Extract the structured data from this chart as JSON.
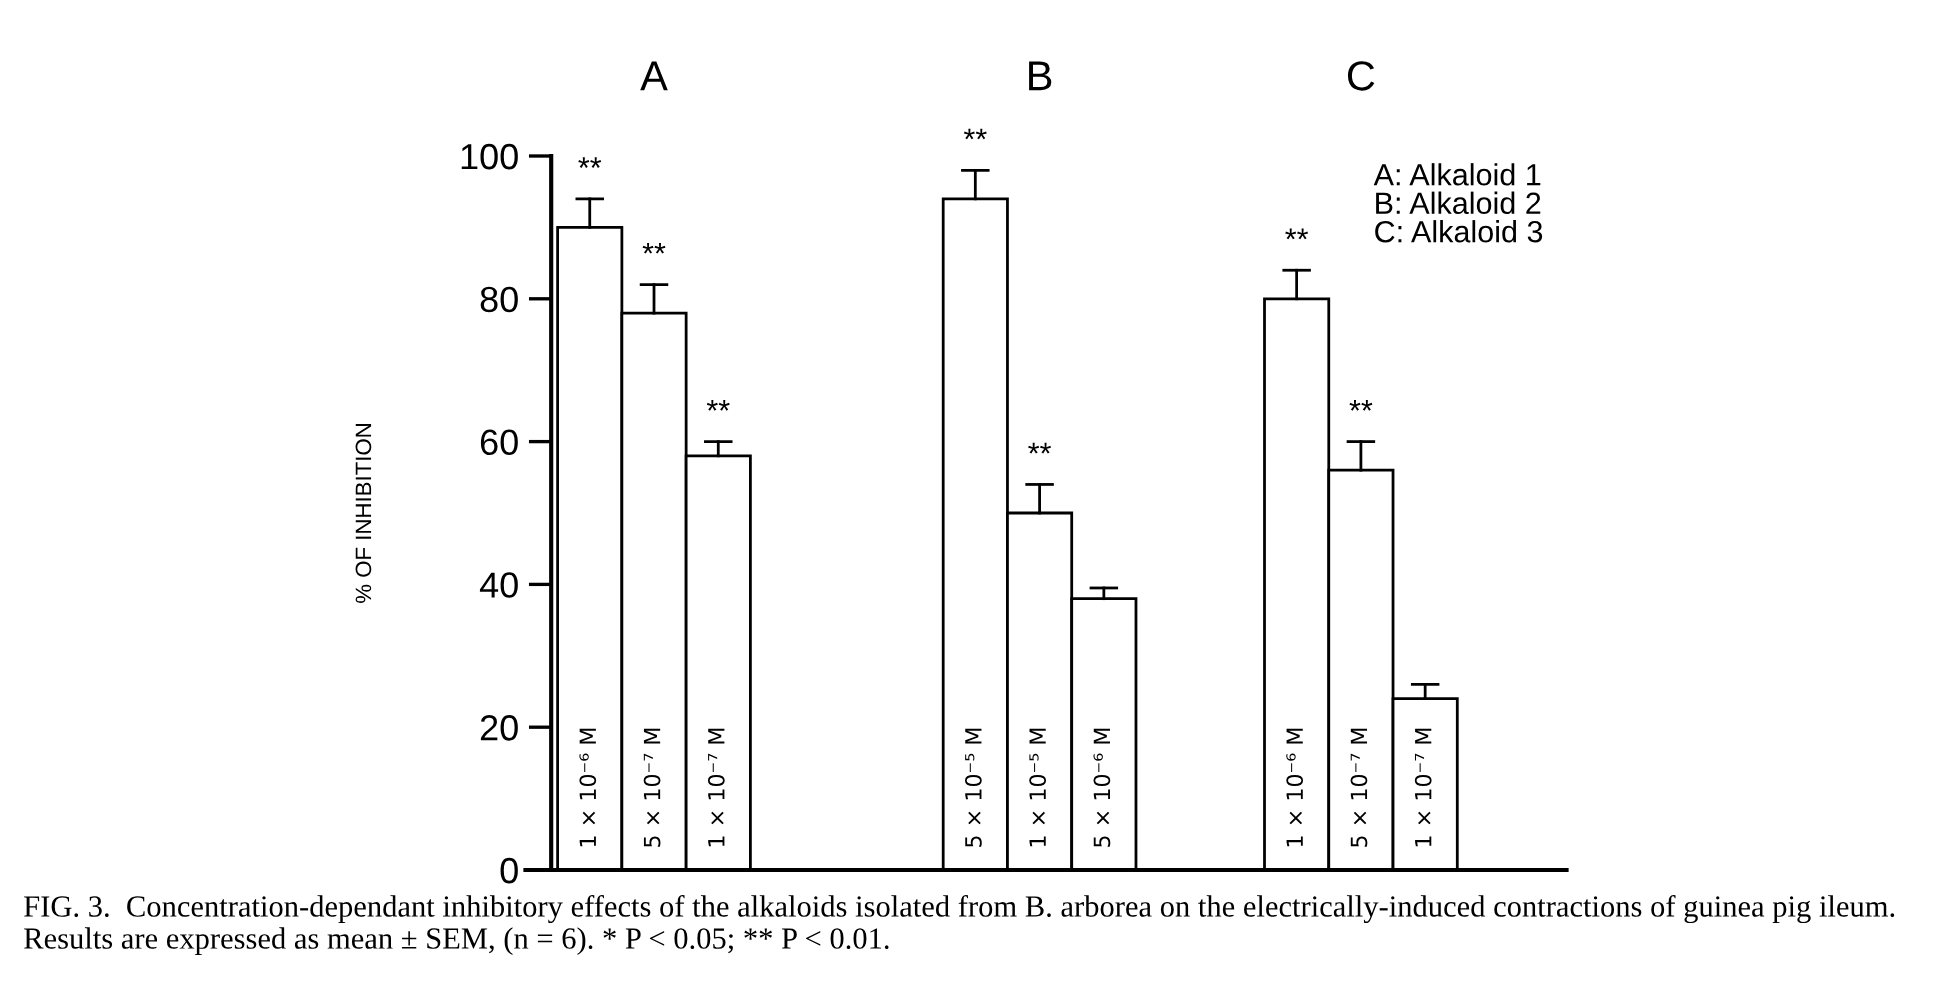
{
  "chart_data": {
    "type": "bar",
    "ylabel": "% OF INHIBITION",
    "categories": [
      "1 × 10⁻⁶ M",
      "5 × 10⁻⁷ M",
      "1 × 10⁻⁷ M",
      null,
      null,
      null,
      "5 × 10⁻⁵ M",
      "1 × 10⁻⁵ M",
      "5 × 10⁻⁶ M",
      null,
      null,
      "1 × 10⁻⁶ M",
      "5 × 10⁻⁷ M",
      "1 × 10⁻⁷ M"
    ],
    "values": [
      90,
      78,
      58,
      null,
      null,
      null,
      94,
      50,
      38,
      null,
      null,
      80,
      56,
      24
    ],
    "errors": [
      [
        90,
        94
      ],
      [
        78,
        82
      ],
      [
        58,
        60
      ],
      null,
      null,
      null,
      [
        94,
        98
      ],
      [
        50,
        54
      ],
      [
        38,
        39.5
      ],
      null,
      null,
      [
        80,
        84
      ],
      [
        56,
        60
      ],
      [
        24,
        26
      ]
    ],
    "value_labels": [
      "**",
      "**",
      "**",
      null,
      null,
      null,
      "**",
      "**",
      null,
      null,
      null,
      "**",
      "**",
      null
    ],
    "color": "#ffffff",
    "ylim": [
      0,
      100
    ],
    "yticks": [
      0,
      20,
      40,
      60,
      80,
      100
    ],
    "grid": false,
    "legend": false,
    "tick_labels": "y",
    "annotations": [
      "A",
      "B",
      "C",
      "A: Alkaloid 1\nB: Alkaloid 2\nC: Alkaloid 3",
      "FIG. 3.  Concentration-dependant inhibitory effects of the alkaloids isolated from B. arborea on the electrically-induced contractions of guinea pig ileum. Results are expressed as mean ± SEM, (n = 6). * P < 0.05; ** P < 0.01."
    ]
  }
}
